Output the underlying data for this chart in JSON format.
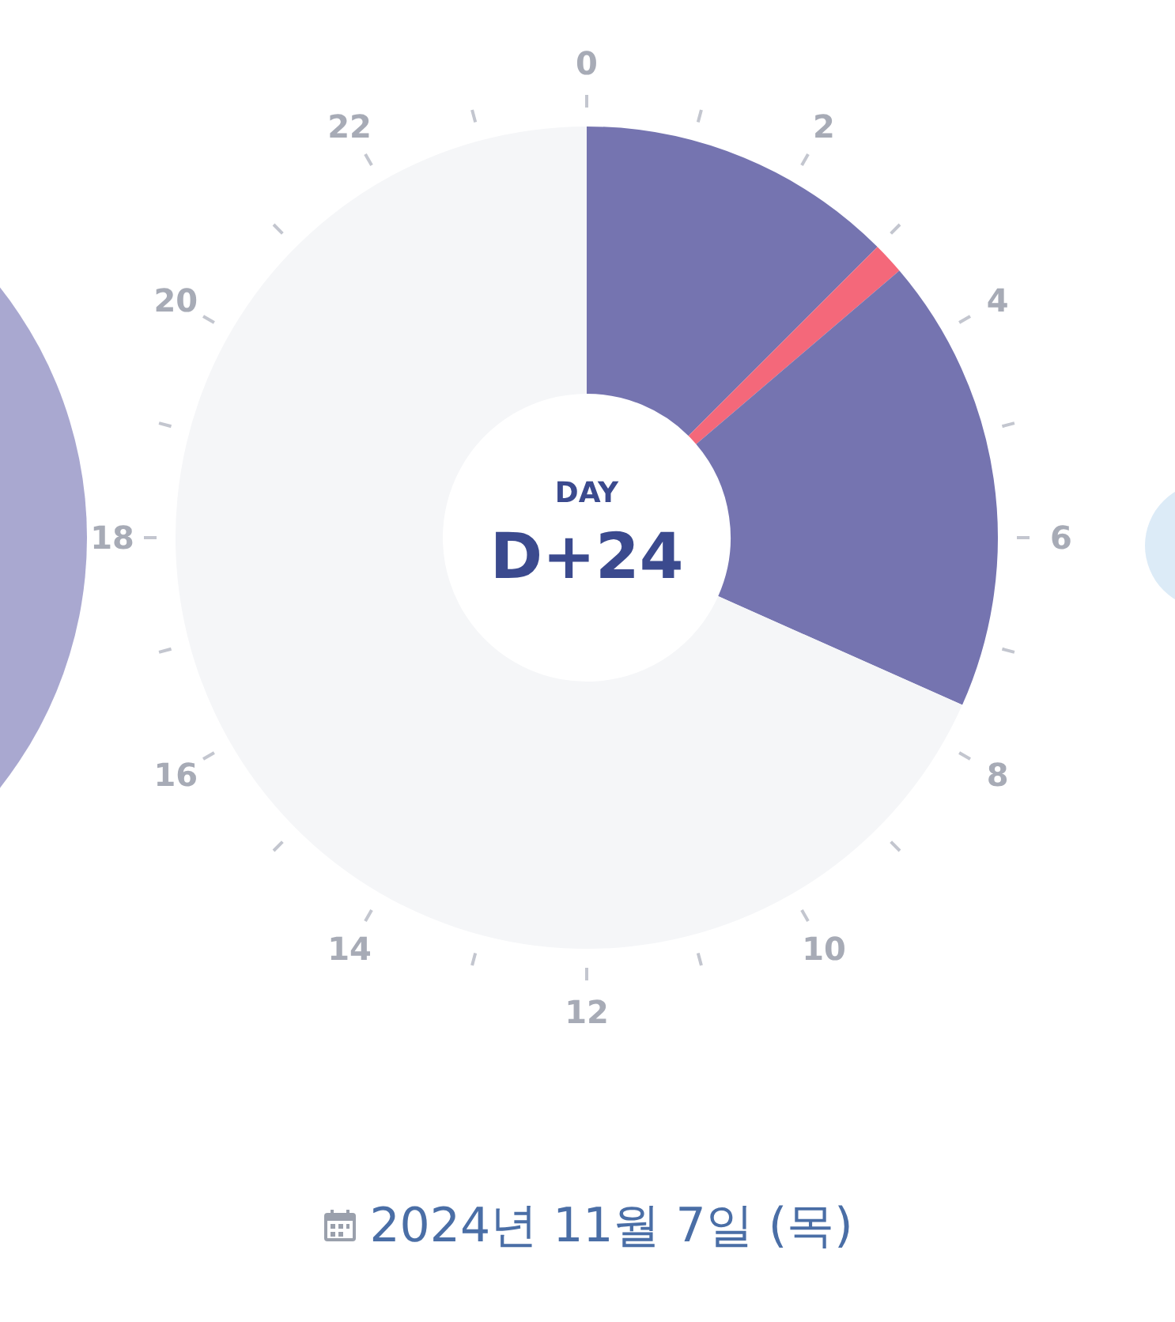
{
  "chart_data": {
    "type": "donut",
    "subtitle": "2024년 11월 7일 (목)",
    "annotations": [
      "DAY",
      "D+24",
      "0",
      "2",
      "4",
      "6",
      "8",
      "10",
      "12",
      "14",
      "16",
      "18",
      "20",
      "22"
    ],
    "categories": [
      null,
      null,
      null,
      null
    ],
    "values": [
      12.5,
      1.25,
      17.92,
      68.33
    ],
    "colors": [
      "#7574b0",
      "#f4687a",
      "#7574b0",
      "#f5f6f8"
    ],
    "legend": false
  }
}
